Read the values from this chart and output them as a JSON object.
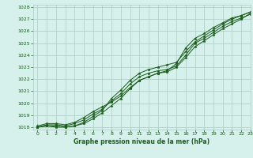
{
  "xlabel": "Graphe pression niveau de la mer (hPa)",
  "xlim": [
    -0.5,
    23
  ],
  "ylim": [
    1017.8,
    1028.2
  ],
  "yticks": [
    1018,
    1019,
    1020,
    1021,
    1022,
    1023,
    1024,
    1025,
    1026,
    1027,
    1028
  ],
  "xticks": [
    0,
    1,
    2,
    3,
    4,
    5,
    6,
    7,
    8,
    9,
    10,
    11,
    12,
    13,
    14,
    15,
    16,
    17,
    18,
    19,
    20,
    21,
    22,
    23
  ],
  "bg_color": "#d6f0ec",
  "grid_color": "#aaccc4",
  "line_color": "#1a5c1a",
  "label_color": "#1a5c1a",
  "series1": [
    1018.1,
    1018.3,
    1018.3,
    1018.2,
    1018.4,
    1018.8,
    1019.3,
    1019.7,
    1020.1,
    1020.6,
    1021.3,
    1021.9,
    1022.2,
    1022.5,
    1022.6,
    1023.0,
    1023.8,
    1024.7,
    1025.2,
    1025.7,
    1026.2,
    1026.6,
    1027.0,
    1027.5
  ],
  "series2": [
    1018.0,
    1018.2,
    1018.2,
    1018.1,
    1018.3,
    1018.6,
    1019.1,
    1019.5,
    1020.2,
    1020.8,
    1021.6,
    1022.2,
    1022.5,
    1022.7,
    1022.8,
    1023.1,
    1024.0,
    1025.0,
    1025.4,
    1025.9,
    1026.4,
    1026.8,
    1027.1,
    1027.4
  ],
  "series3": [
    1018.0,
    1018.1,
    1018.1,
    1018.0,
    1018.1,
    1018.4,
    1018.9,
    1019.4,
    1020.4,
    1021.1,
    1021.9,
    1022.5,
    1022.8,
    1023.0,
    1023.2,
    1023.4,
    1024.3,
    1025.1,
    1025.6,
    1026.1,
    1026.6,
    1027.0,
    1027.3,
    1027.6
  ],
  "series4": [
    1018.0,
    1018.1,
    1018.0,
    1018.0,
    1018.1,
    1018.3,
    1018.7,
    1019.2,
    1019.8,
    1020.4,
    1021.2,
    1021.9,
    1022.2,
    1022.5,
    1022.7,
    1023.3,
    1024.6,
    1025.4,
    1025.8,
    1026.3,
    1026.7,
    1027.1,
    1027.3,
    1027.6
  ]
}
